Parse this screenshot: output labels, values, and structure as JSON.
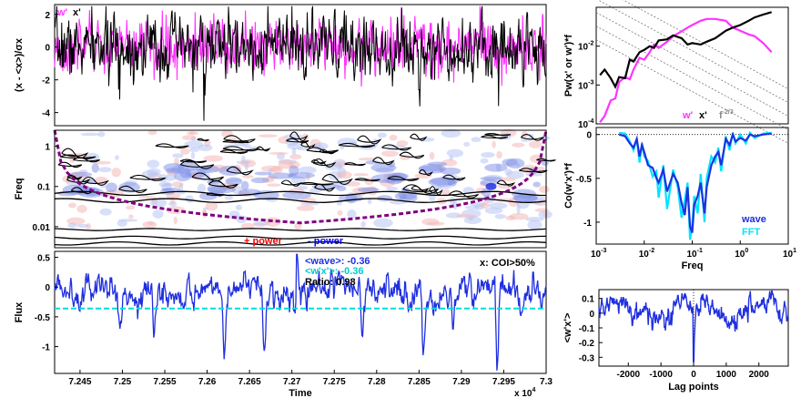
{
  "chart_data": [
    {
      "id": "timeseries",
      "type": "line",
      "ylabel": "(x - <x>)/σx",
      "ylim": [
        -4.8,
        2.6
      ],
      "yticks": [
        -4,
        -2,
        0,
        2
      ],
      "xlim": [
        7.242,
        7.3
      ],
      "legend": [
        "w'",
        "x'"
      ],
      "legend_placement": "top-left",
      "series": [
        {
          "name": "w'",
          "color": "#ff33ff",
          "std": 0.8,
          "seed": 3
        },
        {
          "name": "x'",
          "color": "#000000",
          "std": 0.95,
          "seed": 7,
          "spikes": [
            [
              7.2596,
              -4.5
            ],
            [
              7.2497,
              -3.2
            ],
            [
              7.2944,
              -3.6
            ],
            [
              7.285,
              -2.6
            ]
          ]
        }
      ]
    },
    {
      "id": "spectrogram",
      "type": "heatmap",
      "ylabel": "Freq",
      "yscale": "log",
      "ylim": [
        0.003,
        2.5
      ],
      "yticks": [
        0.01,
        0.1,
        1
      ],
      "yticklabels": [
        "0.01",
        "0.1",
        "1"
      ],
      "xlim": [
        7.242,
        7.3
      ],
      "legend": [
        {
          "label": "+ power",
          "color": "#ff0000"
        },
        {
          "label": "- power",
          "color": "#0000ff"
        }
      ],
      "coi_color": "#800080"
    },
    {
      "id": "flux",
      "type": "line",
      "xlabel": "Time",
      "ylabel": "Flux",
      "ylim": [
        -1.45,
        0.6
      ],
      "yticks": [
        -1,
        -0.5,
        0,
        0.5
      ],
      "xlim": [
        7.242,
        7.3
      ],
      "xticks": [
        7.245,
        7.25,
        7.255,
        7.26,
        7.265,
        7.27,
        7.275,
        7.28,
        7.285,
        7.29,
        7.295,
        7.3
      ],
      "xticklabels": [
        "7.245",
        "7.25",
        "7.255",
        "7.26",
        "7.265",
        "7.27",
        "7.275",
        "7.28",
        "7.285",
        "7.29",
        "7.295",
        "7.3"
      ],
      "x_multiplier": "x 10",
      "x_multiplier_exp": "4",
      "mean_line": -0.36,
      "annotations": {
        "wave": "<wave>: -0.36",
        "wx": "<w'x'>: -0.36",
        "ratio": "Ratio: 0.98",
        "coi": "x: COI>50%"
      },
      "series": [
        {
          "name": "flux",
          "color": "#1f2fe0",
          "dips": [
            [
              7.2497,
              -0.72
            ],
            [
              7.2537,
              -0.85
            ],
            [
              7.262,
              -1.22
            ],
            [
              7.2667,
              -1.12
            ],
            [
              7.2783,
              -0.9
            ],
            [
              7.2855,
              -1.2
            ],
            [
              7.289,
              -0.75
            ],
            [
              7.2942,
              -1.42
            ],
            [
              7.297,
              -0.5
            ]
          ],
          "peaks": [
            [
              7.2706,
              0.55
            ],
            [
              7.2812,
              0.2
            ],
            [
              7.2985,
              0.25
            ]
          ]
        }
      ]
    },
    {
      "id": "spectrum",
      "type": "line",
      "xscale": "log",
      "yscale": "log",
      "ylabel": "Pw(x' or w')*f",
      "xlim": [
        0.001,
        10
      ],
      "ylim": [
        0.0001,
        0.1
      ],
      "yticks": [
        0.0001,
        0.001,
        0.01
      ],
      "yticklabels": [
        "10",
        "10",
        "10"
      ],
      "yticklabel_exps": [
        "-4",
        "-3",
        "-2"
      ],
      "legend": [
        {
          "label": "w'",
          "color": "#ff33ff"
        },
        {
          "label": "x'",
          "color": "#000000"
        },
        {
          "label": "f",
          "sup": "-2/3",
          "color": "#888888"
        }
      ],
      "series": [
        {
          "name": "w'",
          "color": "#ff33ff",
          "x": [
            0.0012,
            0.0015,
            0.002,
            0.0025,
            0.003,
            0.004,
            0.005,
            0.006,
            0.008,
            0.01,
            0.013,
            0.016,
            0.02,
            0.03,
            0.04,
            0.06,
            0.08,
            0.1,
            0.15,
            0.2,
            0.3,
            0.5,
            0.7,
            1.0,
            1.5,
            2.0,
            3.0,
            4.5
          ],
          "y": [
            0.00011,
            0.00016,
            0.0004,
            0.00045,
            0.0012,
            0.0016,
            0.0014,
            0.0025,
            0.005,
            0.0045,
            0.007,
            0.011,
            0.009,
            0.013,
            0.018,
            0.024,
            0.03,
            0.035,
            0.045,
            0.05,
            0.05,
            0.045,
            0.03,
            0.025,
            0.02,
            0.018,
            0.012,
            0.007
          ]
        },
        {
          "name": "x'",
          "color": "#000000",
          "x": [
            0.0012,
            0.0015,
            0.002,
            0.0025,
            0.003,
            0.004,
            0.005,
            0.006,
            0.008,
            0.01,
            0.013,
            0.016,
            0.02,
            0.03,
            0.04,
            0.06,
            0.08,
            0.1,
            0.15,
            0.2,
            0.3,
            0.5,
            0.7,
            1.0,
            1.5,
            2.0,
            3.0,
            4.5
          ],
          "y": [
            0.0018,
            0.0025,
            0.0015,
            0.0009,
            0.0016,
            0.0015,
            0.0045,
            0.004,
            0.007,
            0.008,
            0.01,
            0.009,
            0.014,
            0.015,
            0.019,
            0.016,
            0.011,
            0.012,
            0.011,
            0.013,
            0.016,
            0.025,
            0.03,
            0.035,
            0.045,
            0.055,
            0.065,
            0.075
          ]
        }
      ],
      "reference_slope": -0.6667
    },
    {
      "id": "cospectrum",
      "type": "line",
      "xscale": "log",
      "xlabel": "Freq",
      "ylabel": "Co(w'x')*f",
      "xlim": [
        0.001,
        10
      ],
      "ylim": [
        -1.25,
        0.08
      ],
      "yticks": [
        -1,
        -0.5,
        0
      ],
      "xticks": [
        0.001,
        0.01,
        0.1,
        1,
        10
      ],
      "xticklabels": [
        "10",
        "10",
        "10",
        "10",
        "10"
      ],
      "xticklabel_exps": [
        "-3",
        "-2",
        "-1",
        "0",
        "1"
      ],
      "legend": [
        {
          "label": "wave",
          "color": "#1f2fe0"
        },
        {
          "label": "FFT",
          "color": "#00e5ff"
        }
      ],
      "series": [
        {
          "name": "wave",
          "color": "#1f2fe0",
          "x": [
            0.003,
            0.004,
            0.005,
            0.006,
            0.007,
            0.008,
            0.009,
            0.01,
            0.012,
            0.015,
            0.018,
            0.02,
            0.025,
            0.03,
            0.04,
            0.05,
            0.06,
            0.07,
            0.08,
            0.09,
            0.1,
            0.11,
            0.13,
            0.15,
            0.18,
            0.2,
            0.25,
            0.3,
            0.35,
            0.4,
            0.5,
            0.6,
            0.7,
            0.8,
            1.0,
            1.3,
            1.6,
            2.0,
            3.0,
            4.5
          ],
          "y": [
            0.0,
            -0.02,
            -0.1,
            -0.15,
            -0.05,
            -0.25,
            -0.12,
            -0.2,
            -0.35,
            -0.38,
            -0.5,
            -0.55,
            -0.4,
            -0.65,
            -0.45,
            -0.55,
            -0.78,
            -0.92,
            -0.6,
            -1.05,
            -1.12,
            -0.8,
            -0.7,
            -0.55,
            -0.9,
            -0.6,
            -0.35,
            -0.25,
            -0.2,
            -0.35,
            -0.05,
            -0.12,
            0.0,
            -0.08,
            -0.04,
            -0.07,
            0.0,
            -0.02,
            0.0,
            0.01
          ]
        },
        {
          "name": "FFT",
          "color": "#00e5ff",
          "x": [
            0.003,
            0.004,
            0.005,
            0.006,
            0.007,
            0.008,
            0.009,
            0.01,
            0.012,
            0.015,
            0.018,
            0.02,
            0.025,
            0.03,
            0.04,
            0.05,
            0.06,
            0.07,
            0.08,
            0.09,
            0.1,
            0.11,
            0.13,
            0.15,
            0.18,
            0.2,
            0.25,
            0.3,
            0.35,
            0.4,
            0.5,
            0.6,
            0.7,
            0.8,
            1.0,
            1.3,
            1.6,
            2.0,
            3.0,
            4.5
          ],
          "y": [
            0.02,
            0.01,
            -0.08,
            -0.18,
            -0.05,
            -0.32,
            -0.1,
            -0.25,
            -0.3,
            -0.48,
            -0.42,
            -0.72,
            -0.35,
            -0.85,
            -0.4,
            -0.6,
            -0.95,
            -0.75,
            -0.55,
            -1.2,
            -1.02,
            -0.7,
            -0.9,
            -0.45,
            -1.0,
            -0.5,
            -0.25,
            -0.32,
            -0.15,
            -0.42,
            -0.02,
            -0.18,
            0.02,
            -0.1,
            0.0,
            -0.1,
            0.02,
            -0.04,
            0.01,
            0.02
          ]
        }
      ]
    },
    {
      "id": "lagcorr",
      "type": "line",
      "xlabel": "Lag points",
      "ylabel": "<w'x'>",
      "xlim": [
        -2900,
        2900
      ],
      "ylim": [
        -0.36,
        0.16
      ],
      "yticks": [
        -0.3,
        -0.2,
        -0.1,
        0,
        0.1
      ],
      "xticks": [
        -2000,
        -1000,
        0,
        1000,
        2000
      ],
      "series": [
        {
          "name": "lag",
          "color": "#1f2fe0",
          "spike_at": 0,
          "spike_value": -0.33
        }
      ]
    }
  ]
}
